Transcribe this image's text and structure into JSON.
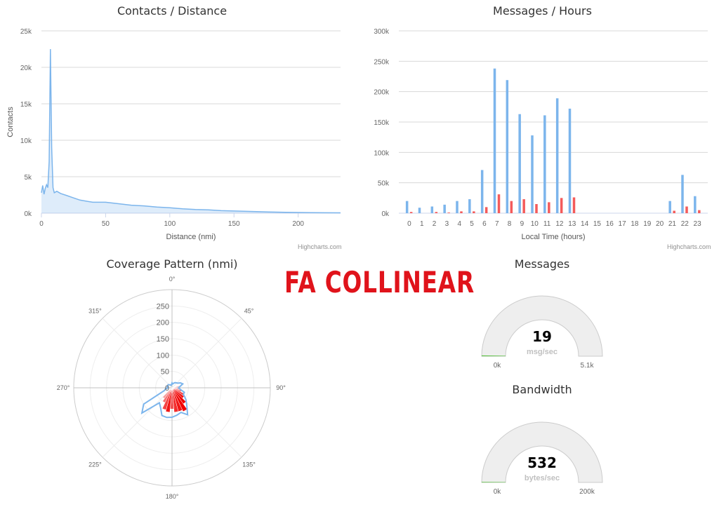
{
  "banner": "FA COLLINEAR",
  "credits": "Highcharts.com",
  "colors": {
    "blue": "#7cb5ec",
    "red": "#f45b5b",
    "grid": "#d8d8d8",
    "gauge_bg": "#eeeeee"
  },
  "chart_data": [
    {
      "id": "distance",
      "type": "area",
      "title": "Contacts / Distance",
      "xlabel": "Distance (nmi)",
      "ylabel": "Contacts",
      "xlim": [
        0,
        233
      ],
      "ylim": [
        0,
        25000
      ],
      "x_ticks": [
        "0",
        "50",
        "100",
        "150",
        "200"
      ],
      "y_ticks": [
        "0k",
        "5k",
        "10k",
        "15k",
        "20k",
        "25k"
      ],
      "grid": true,
      "series": [
        {
          "x": [
            0,
            1,
            2,
            3,
            4,
            5,
            6,
            7,
            8,
            9,
            10,
            12,
            15,
            20,
            25,
            30,
            40,
            50,
            60,
            70,
            80,
            90,
            100,
            110,
            120,
            130,
            140,
            150,
            160,
            170,
            180,
            190,
            200,
            210,
            220,
            233
          ],
          "y": [
            2800,
            3800,
            2600,
            3400,
            3900,
            3500,
            7000,
            22500,
            9000,
            3500,
            2800,
            3000,
            2700,
            2400,
            2100,
            1800,
            1500,
            1500,
            1300,
            1100,
            1000,
            850,
            750,
            600,
            500,
            450,
            350,
            300,
            250,
            200,
            150,
            120,
            100,
            80,
            60,
            50
          ]
        }
      ]
    },
    {
      "id": "hours",
      "type": "bar",
      "title": "Messages / Hours",
      "xlabel": "Local Time (hours)",
      "ylabel": "",
      "ylim": [
        0,
        300000
      ],
      "y_ticks": [
        "0k",
        "50k",
        "100k",
        "150k",
        "200k",
        "250k",
        "300k"
      ],
      "categories": [
        "0",
        "1",
        "2",
        "3",
        "4",
        "5",
        "6",
        "7",
        "8",
        "9",
        "10",
        "11",
        "12",
        "13",
        "14",
        "15",
        "16",
        "17",
        "18",
        "19",
        "20",
        "21",
        "22",
        "23"
      ],
      "grid": true,
      "series": [
        {
          "values": [
            20000,
            9000,
            11000,
            14000,
            20000,
            23000,
            71000,
            238000,
            219000,
            163000,
            128000,
            161000,
            189000,
            172000,
            0,
            0,
            0,
            0,
            0,
            0,
            0,
            20000,
            63000,
            28000
          ]
        },
        {
          "values": [
            2000,
            0,
            2000,
            1000,
            3000,
            3000,
            10000,
            31000,
            20000,
            23000,
            15000,
            18000,
            25000,
            26000,
            0,
            0,
            0,
            0,
            0,
            0,
            0,
            4000,
            11000,
            5000
          ]
        }
      ]
    },
    {
      "id": "coverage",
      "type": "polar",
      "title": "Coverage Pattern (nmi)",
      "r_ticks": [
        "0",
        "50",
        "100",
        "150",
        "200",
        "250"
      ],
      "rmax": 300,
      "angle_labels": [
        "0°",
        "45°",
        "90°",
        "135°",
        "180°",
        "225°",
        "270°",
        "315°"
      ],
      "outline": {
        "angles": [
          0,
          10,
          20,
          30,
          40,
          50,
          60,
          70,
          80,
          90,
          100,
          110,
          120,
          130,
          140,
          150,
          160,
          170,
          180,
          190,
          200,
          210,
          220,
          230,
          240,
          250,
          260,
          270,
          280,
          290,
          300,
          310,
          320,
          330,
          340,
          350
        ],
        "r": [
          15,
          12,
          15,
          18,
          20,
          22,
          30,
          35,
          25,
          20,
          25,
          40,
          40,
          55,
          70,
          95,
          80,
          85,
          90,
          92,
          90,
          70,
          60,
          120,
          100,
          25,
          20,
          12,
          15,
          14,
          15,
          15,
          12,
          10,
          8,
          10
        ]
      },
      "wedges": {
        "angles": [
          80,
          90,
          100,
          110,
          120,
          130,
          140,
          150,
          160,
          170,
          180,
          190,
          200,
          210,
          220
        ],
        "r": [
          25,
          20,
          25,
          30,
          40,
          45,
          60,
          80,
          75,
          75,
          65,
          75,
          70,
          50,
          40
        ],
        "intensity": [
          0.2,
          0.2,
          0.3,
          0.5,
          0.7,
          0.9,
          1.0,
          1.0,
          0.9,
          0.8,
          0.6,
          0.9,
          0.7,
          0.5,
          0.3
        ]
      }
    }
  ],
  "gauges": [
    {
      "id": "messages",
      "title": "Messages",
      "value": "19",
      "unit": "msg/sec",
      "min": "0k",
      "max": "5.1k",
      "fraction": 0.004
    },
    {
      "id": "bandwidth",
      "title": "Bandwidth",
      "value": "532",
      "unit": "bytes/sec",
      "min": "0k",
      "max": "200k",
      "fraction": 0.003
    }
  ]
}
